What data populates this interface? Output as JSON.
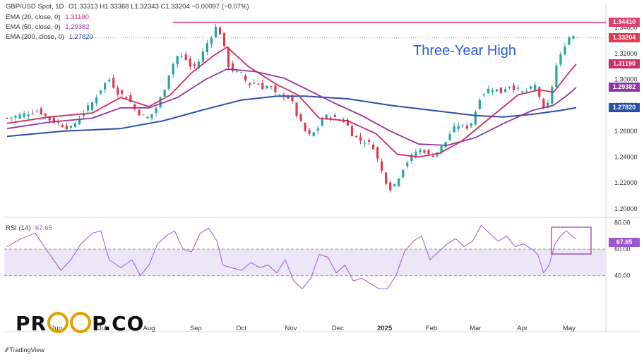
{
  "header": {
    "symbol": "GBP/USD Spot, 1D",
    "ohlc": "O1.33313  H1.33368  L1.32343  C1.33204  −0.00097 (−0.07%)"
  },
  "indicators": [
    {
      "label": "EMA (20, close, 0)",
      "value": "1.31190",
      "color": "#cc2f63"
    },
    {
      "label": "EMA (50, close, 0)",
      "value": "1.29382",
      "color": "#8e36a8"
    },
    {
      "label": "EMA (200, close, 0)",
      "value": "1.27820",
      "color": "#2a4fa8"
    }
  ],
  "rsi": {
    "label": "RSI (14)",
    "value": "67.65",
    "color": "#9b59d0"
  },
  "annotation": "Three-Year High",
  "brand": {
    "left": "PR",
    "right": "P.CO"
  },
  "watermark": "TradingView",
  "colors": {
    "up": "#26a69a",
    "down": "#e03a4e",
    "high_line": "#e04070",
    "rsi_band": "#ede6f7"
  },
  "chart_data": [
    {
      "type": "line",
      "name": "price",
      "ylim": [
        1.195,
        1.345
      ],
      "yticks": [
        "1.34000",
        "1.32000",
        "1.30000",
        "1.28000",
        "1.26000",
        "1.24000",
        "1.22000",
        "1.20000"
      ],
      "xticks": [
        "Jun",
        "Jul",
        "Aug",
        "Sep",
        "Oct",
        "Nov",
        "Dec",
        "2025",
        "Feb",
        "Mar",
        "Apr",
        "May"
      ],
      "price_labels": [
        {
          "value": "1.34410",
          "y": 1.3441,
          "color": "#e04070"
        },
        {
          "value": "1.33204",
          "y": 1.33204,
          "color": "#e03a4e"
        },
        {
          "value": "1.31190",
          "y": 1.3119,
          "color": "#cc2f63"
        },
        {
          "value": "1.29382",
          "y": 1.29382,
          "color": "#8e36a8"
        },
        {
          "value": "1.27820",
          "y": 1.2782,
          "color": "#2a4fa8"
        }
      ],
      "three_year_high": 1.3441,
      "close_path": [
        [
          0,
          1.27
        ],
        [
          8,
          1.272
        ],
        [
          15,
          1.274
        ],
        [
          22,
          1.276
        ],
        [
          30,
          1.269
        ],
        [
          38,
          1.265
        ],
        [
          45,
          1.262
        ],
        [
          52,
          1.272
        ],
        [
          60,
          1.282
        ],
        [
          68,
          1.296
        ],
        [
          72,
          1.3
        ],
        [
          78,
          1.29
        ],
        [
          85,
          1.286
        ],
        [
          90,
          1.277
        ],
        [
          95,
          1.272
        ],
        [
          100,
          1.27
        ],
        [
          105,
          1.278
        ],
        [
          110,
          1.29
        ],
        [
          115,
          1.308
        ],
        [
          120,
          1.318
        ],
        [
          125,
          1.317
        ],
        [
          130,
          1.308
        ],
        [
          135,
          1.314
        ],
        [
          140,
          1.326
        ],
        [
          145,
          1.336
        ],
        [
          148,
          1.342
        ],
        [
          152,
          1.33
        ],
        [
          155,
          1.312
        ],
        [
          160,
          1.306
        ],
        [
          165,
          1.304
        ],
        [
          170,
          1.296
        ],
        [
          175,
          1.298
        ],
        [
          180,
          1.294
        ],
        [
          185,
          1.295
        ],
        [
          190,
          1.287
        ],
        [
          195,
          1.288
        ],
        [
          200,
          1.285
        ],
        [
          203,
          1.275
        ],
        [
          208,
          1.264
        ],
        [
          212,
          1.256
        ],
        [
          218,
          1.26
        ],
        [
          222,
          1.27
        ],
        [
          228,
          1.272
        ],
        [
          232,
          1.269
        ],
        [
          238,
          1.268
        ],
        [
          243,
          1.258
        ],
        [
          248,
          1.253
        ],
        [
          253,
          1.252
        ],
        [
          258,
          1.248
        ],
        [
          262,
          1.235
        ],
        [
          266,
          1.223
        ],
        [
          270,
          1.216
        ],
        [
          274,
          1.22
        ],
        [
          278,
          1.23
        ],
        [
          283,
          1.238
        ],
        [
          288,
          1.244
        ],
        [
          293,
          1.246
        ],
        [
          298,
          1.24
        ],
        [
          303,
          1.244
        ],
        [
          308,
          1.25
        ],
        [
          313,
          1.26
        ],
        [
          318,
          1.265
        ],
        [
          323,
          1.262
        ],
        [
          328,
          1.268
        ],
        [
          333,
          1.286
        ],
        [
          338,
          1.292
        ],
        [
          343,
          1.293
        ],
        [
          348,
          1.29
        ],
        [
          353,
          1.296
        ],
        [
          358,
          1.293
        ],
        [
          363,
          1.29
        ],
        [
          368,
          1.292
        ],
        [
          372,
          1.295
        ],
        [
          375,
          1.287
        ],
        [
          378,
          1.276
        ],
        [
          382,
          1.282
        ],
        [
          386,
          1.308
        ],
        [
          390,
          1.318
        ],
        [
          394,
          1.33
        ],
        [
          398,
          1.335
        ],
        [
          401,
          1.332
        ]
      ],
      "ema20_path": [
        [
          0,
          1.266
        ],
        [
          30,
          1.271
        ],
        [
          60,
          1.274
        ],
        [
          80,
          1.286
        ],
        [
          100,
          1.279
        ],
        [
          115,
          1.288
        ],
        [
          130,
          1.305
        ],
        [
          145,
          1.318
        ],
        [
          155,
          1.325
        ],
        [
          170,
          1.31
        ],
        [
          190,
          1.296
        ],
        [
          205,
          1.288
        ],
        [
          220,
          1.27
        ],
        [
          240,
          1.268
        ],
        [
          260,
          1.258
        ],
        [
          275,
          1.242
        ],
        [
          290,
          1.24
        ],
        [
          305,
          1.243
        ],
        [
          320,
          1.252
        ],
        [
          340,
          1.27
        ],
        [
          360,
          1.288
        ],
        [
          375,
          1.292
        ],
        [
          385,
          1.29
        ],
        [
          395,
          1.304
        ],
        [
          401,
          1.3119
        ]
      ],
      "ema50_path": [
        [
          0,
          1.262
        ],
        [
          30,
          1.267
        ],
        [
          60,
          1.27
        ],
        [
          80,
          1.278
        ],
        [
          100,
          1.278
        ],
        [
          120,
          1.286
        ],
        [
          140,
          1.3
        ],
        [
          155,
          1.308
        ],
        [
          175,
          1.306
        ],
        [
          195,
          1.301
        ],
        [
          210,
          1.293
        ],
        [
          230,
          1.282
        ],
        [
          250,
          1.272
        ],
        [
          270,
          1.26
        ],
        [
          290,
          1.25
        ],
        [
          310,
          1.249
        ],
        [
          330,
          1.255
        ],
        [
          350,
          1.266
        ],
        [
          370,
          1.276
        ],
        [
          385,
          1.28
        ],
        [
          395,
          1.288
        ],
        [
          401,
          1.2938
        ]
      ],
      "ema200_path": [
        [
          0,
          1.256
        ],
        [
          40,
          1.26
        ],
        [
          80,
          1.262
        ],
        [
          110,
          1.268
        ],
        [
          140,
          1.277
        ],
        [
          165,
          1.284
        ],
        [
          190,
          1.287
        ],
        [
          210,
          1.287
        ],
        [
          240,
          1.285
        ],
        [
          270,
          1.28
        ],
        [
          300,
          1.276
        ],
        [
          330,
          1.272
        ],
        [
          350,
          1.271
        ],
        [
          370,
          1.273
        ],
        [
          390,
          1.276
        ],
        [
          401,
          1.2782
        ]
      ]
    },
    {
      "type": "line",
      "name": "RSI (14)",
      "ylim": [
        20,
        82
      ],
      "levels": [
        60,
        40
      ],
      "yticks": [
        "80.00",
        "60.00",
        "40.00"
      ],
      "path": [
        [
          0,
          62
        ],
        [
          10,
          68
        ],
        [
          20,
          72
        ],
        [
          30,
          56
        ],
        [
          38,
          44
        ],
        [
          45,
          52
        ],
        [
          52,
          64
        ],
        [
          60,
          72
        ],
        [
          66,
          74
        ],
        [
          72,
          52
        ],
        [
          80,
          46
        ],
        [
          88,
          52
        ],
        [
          94,
          40
        ],
        [
          100,
          48
        ],
        [
          106,
          64
        ],
        [
          112,
          70
        ],
        [
          118,
          74
        ],
        [
          124,
          60
        ],
        [
          130,
          58
        ],
        [
          136,
          72
        ],
        [
          142,
          76
        ],
        [
          148,
          66
        ],
        [
          152,
          48
        ],
        [
          158,
          46
        ],
        [
          165,
          44
        ],
        [
          172,
          50
        ],
        [
          178,
          46
        ],
        [
          184,
          48
        ],
        [
          190,
          42
        ],
        [
          196,
          52
        ],
        [
          202,
          36
        ],
        [
          208,
          30
        ],
        [
          214,
          38
        ],
        [
          220,
          56
        ],
        [
          226,
          54
        ],
        [
          232,
          42
        ],
        [
          238,
          48
        ],
        [
          244,
          36
        ],
        [
          250,
          38
        ],
        [
          256,
          34
        ],
        [
          262,
          30
        ],
        [
          268,
          30
        ],
        [
          274,
          40
        ],
        [
          280,
          58
        ],
        [
          286,
          66
        ],
        [
          292,
          70
        ],
        [
          298,
          52
        ],
        [
          304,
          58
        ],
        [
          310,
          64
        ],
        [
          316,
          68
        ],
        [
          322,
          62
        ],
        [
          328,
          66
        ],
        [
          334,
          78
        ],
        [
          340,
          72
        ],
        [
          346,
          66
        ],
        [
          352,
          70
        ],
        [
          358,
          62
        ],
        [
          364,
          64
        ],
        [
          370,
          60
        ],
        [
          374,
          56
        ],
        [
          378,
          42
        ],
        [
          382,
          48
        ],
        [
          386,
          64
        ],
        [
          390,
          70
        ],
        [
          394,
          74
        ],
        [
          398,
          70
        ],
        [
          401,
          67.65
        ]
      ]
    }
  ]
}
